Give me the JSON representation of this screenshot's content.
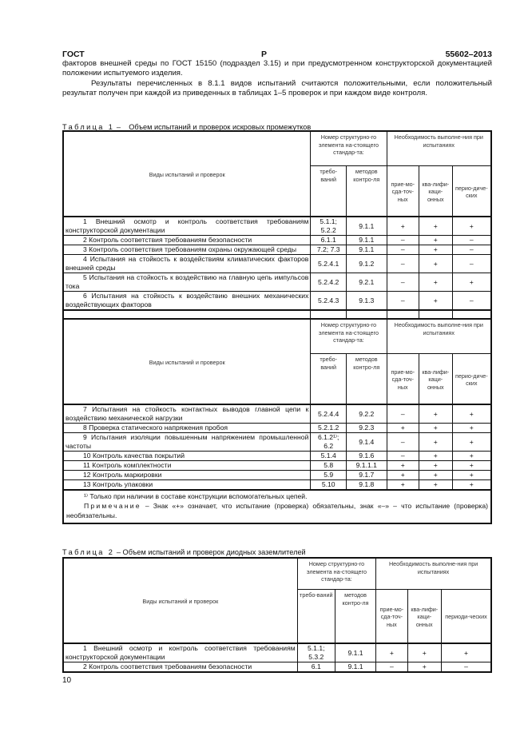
{
  "header": {
    "left": "ГОСТ",
    "center": "Р",
    "right": "55602–2013"
  },
  "paragraphs": [
    "факторов внешней среды по ГОСТ 15150 (подраздел 3.15) и при предусмотренном конструкторской документацией положении испытуемого изделия.",
    "Результаты перечисленных в 8.1.1 видов испытаний считаются положительными, если положительный результат получен при каждой из приведенных в таблицах 1–5 проверок и при каждом виде контроля."
  ],
  "columns": {
    "name": "Виды испытаний и проверок",
    "number_group": "Номер структурно-го элемента на-стоящего стандар-та:",
    "req": "требо-ваний",
    "methods": "методов контро-ля",
    "need_group": "Необходимость выполне-ния при испытаниях",
    "acc": "прие-мо-сда-точ-ных",
    "qual": "ква-лифи-каци-онных",
    "per": "перио-диче-ских"
  },
  "table1": {
    "label": "Таблица 1",
    "dash": "–",
    "title": "Объем испытаний и проверок искровых промежутков",
    "rows_a": [
      [
        "1 Внешний осмотр и контроль соответствия требованиям конструкторской документации",
        "5.1.1; 5.2.2",
        "9.1.1",
        "+",
        "+",
        "+"
      ],
      [
        "2 Контроль соответствия требованиям безопасности",
        "6.1.1",
        "9.1.1",
        "–",
        "+",
        "–"
      ],
      [
        "3 Контроль соответствия требованиям охраны окружающей среды",
        "7.2; 7.3",
        "9.1.1",
        "–",
        "+",
        "–"
      ],
      [
        "4 Испытания на стойкость к воздействиям климатических факторов внешней среды",
        "5.2.4.1",
        "9.1.2",
        "–",
        "+",
        "–"
      ],
      [
        "5 Испытания на стойкость к воздействию на главную цепь импульсов тока",
        "5.2.4.2",
        "9.2.1",
        "–",
        "+",
        "+"
      ],
      [
        "6 Испытания на стойкость к воздействию внешних механических воздействующих факторов",
        "5.2.4.3",
        "9.1.3",
        "–",
        "+",
        "–"
      ]
    ],
    "rows_b": [
      [
        "7 Испытания на стойкость контактных выводов главной цепи к воздействию механической нагрузки",
        "5.2.4.4",
        "9.2.2",
        "–",
        "+",
        "+"
      ],
      [
        "8 Проверка статического напряжения пробоя",
        "5.2.1.2",
        "9.2.3",
        "+",
        "+",
        "+"
      ],
      [
        "9 Испытания изоляции повышенным напряжением промышленной частоты",
        "6.1.2¹⁾; 6.2",
        "9.1.4",
        "–",
        "+",
        "+"
      ],
      [
        "10 Контроль качества покрытий",
        "5.1.4",
        "9.1.6",
        "–",
        "+",
        "+"
      ],
      [
        "11 Контроль комплектности",
        "5.8",
        "9.1.1.1",
        "+",
        "+",
        "+"
      ],
      [
        "12 Контроль маркировки",
        "5.9",
        "9.1.7",
        "+",
        "+",
        "+"
      ],
      [
        "13 Контроль упаковки",
        "5.10",
        "9.1.8",
        "+",
        "+",
        "+"
      ]
    ],
    "footnote": "¹⁾ Только при наличии в составе конструкции вспомогательных цепей.",
    "note_label": "Примечание",
    "note_text": " – Знак «+» означает, что испытание (проверка) обязательны, знак «–» – что испытание (проверка) необязательны."
  },
  "table2": {
    "label": "Таблица 2",
    "dash": "–",
    "title": "Объем испытаний и проверок диодных заземлителей",
    "per": "периоди-ческих",
    "rows": [
      [
        "1 Внешний осмотр и контроль соответствия требованиям конструкторской документации",
        "5.1.1; 5.3.2",
        "9.1.1",
        "+",
        "+",
        "+"
      ],
      [
        "2 Контроль соответствия требованиям безопасности",
        "6.1",
        "9.1.1",
        "–",
        "+",
        "–"
      ]
    ]
  },
  "page_number": "10"
}
